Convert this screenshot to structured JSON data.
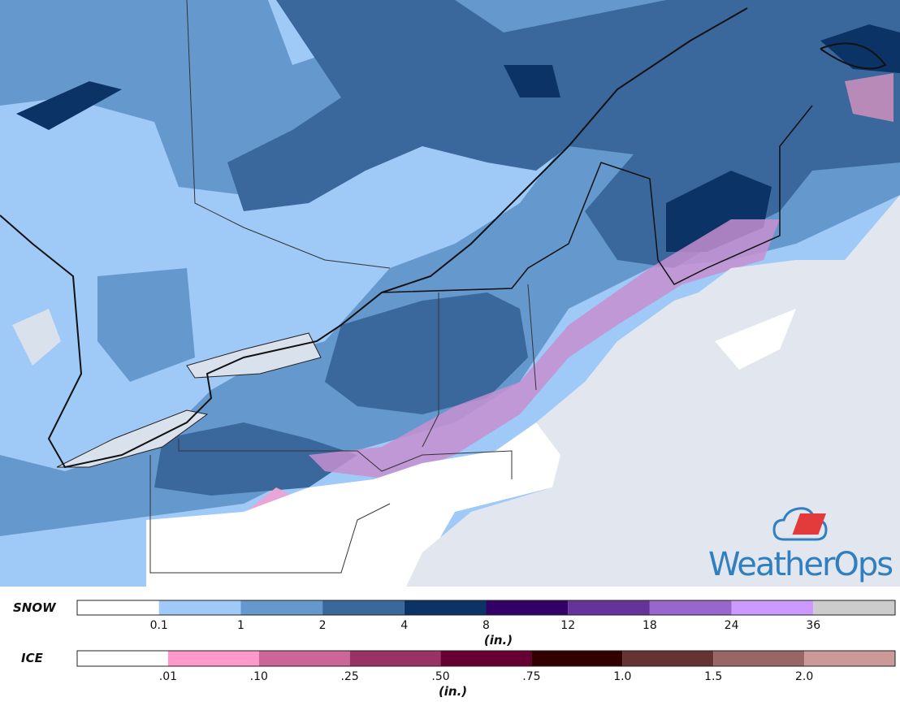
{
  "logo": {
    "text": "WeatherOps"
  },
  "legends": [
    {
      "label": "SNOW",
      "unit": "(in.)",
      "ticks": [
        "0.1",
        "1",
        "2",
        "4",
        "8",
        "12",
        "18",
        "24",
        "36"
      ],
      "colors": [
        "#ffffff",
        "#9fc9f7",
        "#6598cc",
        "#3a689c",
        "#0b3366",
        "#330066",
        "#66339a",
        "#9966cc",
        "#cc99ff",
        "#cccccc"
      ]
    },
    {
      "label": "ICE",
      "unit": "(in.)",
      "ticks": [
        ".01",
        ".10",
        ".25",
        ".50",
        ".75",
        "1.0",
        "1.5",
        "2.0"
      ],
      "colors": [
        "#ffffff",
        "#ff99cc",
        "#cc6699",
        "#993366",
        "#660033",
        "#330000",
        "#663333",
        "#996666",
        "#cc9999"
      ]
    }
  ]
}
